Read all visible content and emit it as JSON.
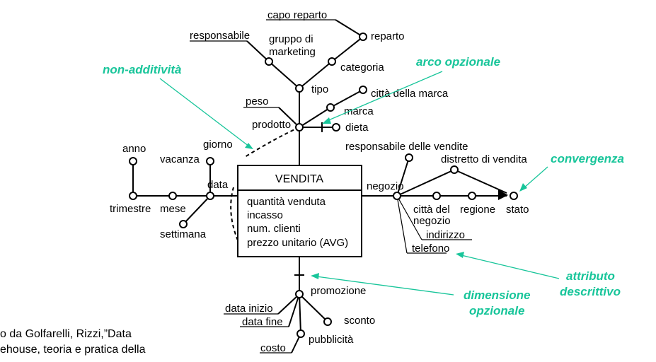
{
  "fact": {
    "name": "VENDITA",
    "measures": [
      "quantità venduta",
      "incasso",
      "num. clienti",
      "prezzo unitario (AVG)"
    ]
  },
  "attributes": {
    "capo_reparto": "capo reparto",
    "reparto": "reparto",
    "responsabile": "responsabile",
    "gruppo_marketing_1": "gruppo di",
    "gruppo_marketing_2": "marketing",
    "categoria": "categoria",
    "tipo": "tipo",
    "citta_marca": "città della marca",
    "peso": "peso",
    "marca": "marca",
    "prodotto": "prodotto",
    "dieta": "dieta",
    "anno": "anno",
    "giorno": "giorno",
    "vacanza": "vacanza",
    "data": "data",
    "trimestre": "trimestre",
    "mese": "mese",
    "settimana": "settimana",
    "responsabile_vendite": "responsabile delle vendite",
    "distretto_vendita": "distretto di vendita",
    "negozio": "negozio",
    "citta_regione": "città del",
    "regione": "regione",
    "stato": "stato",
    "negozio_descr": "negozio",
    "indirizzo": "indirizzo",
    "telefono": "telefono",
    "promozione": "promozione",
    "data_inizio": "data inizio",
    "data_fine": "data fine",
    "sconto": "sconto",
    "pubblicita": "pubblicità",
    "costo": "costo"
  },
  "annotations": {
    "non_additivita": "non-additività",
    "arco_opzionale": "arco opzionale",
    "convergenza": "convergenza",
    "attributo_descrittivo_1": "attributo",
    "attributo_descrittivo_2": "descrittivo",
    "dimensione_opzionale_1": "dimensione",
    "dimensione_opzionale_2": "opzionale"
  },
  "colors": {
    "annotation": "#18c59a",
    "line": "#000000"
  },
  "source": {
    "line1": "o da Golfarelli, Rizzi,”Data",
    "line2": "ehouse, teoria e pratica della"
  }
}
